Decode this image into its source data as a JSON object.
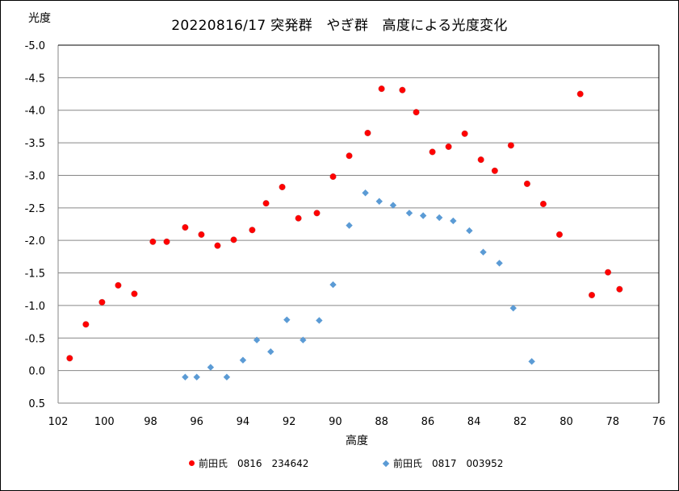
{
  "chart_data": {
    "type": "scatter",
    "title": "20220816/17 突発群　やぎ群　高度による光度変化",
    "xlabel": "高度",
    "ylabel": "光度",
    "xlim": [
      102,
      76
    ],
    "ylim": [
      0.5,
      -5.0
    ],
    "x_reversed": true,
    "y_reversed": true,
    "x_ticks": [
      "102",
      "100",
      "98",
      "96",
      "94",
      "92",
      "90",
      "88",
      "86",
      "84",
      "82",
      "80",
      "78",
      "76"
    ],
    "y_ticks": [
      "-5.0",
      "-4.5",
      "-4.0",
      "-3.5",
      "-3.0",
      "-2.5",
      "-2.0",
      "-1.5",
      "-1.0",
      "-0.5",
      "0.0",
      "0.5"
    ],
    "grid": true,
    "legend_position": "bottom",
    "series": [
      {
        "name": "前田氏　0816　234642",
        "marker": "circle",
        "color": "#ff0000",
        "points": [
          [
            101.5,
            -0.19
          ],
          [
            100.8,
            -0.71
          ],
          [
            100.1,
            -1.05
          ],
          [
            99.4,
            -1.31
          ],
          [
            98.7,
            -1.18
          ],
          [
            97.9,
            -1.98
          ],
          [
            97.3,
            -1.98
          ],
          [
            96.5,
            -2.2
          ],
          [
            95.8,
            -2.09
          ],
          [
            95.1,
            -1.92
          ],
          [
            94.4,
            -2.01
          ],
          [
            93.6,
            -2.16
          ],
          [
            93.0,
            -2.57
          ],
          [
            92.3,
            -2.82
          ],
          [
            91.6,
            -2.34
          ],
          [
            90.8,
            -2.42
          ],
          [
            90.1,
            -2.98
          ],
          [
            89.4,
            -3.3
          ],
          [
            88.6,
            -3.65
          ],
          [
            88.0,
            -4.33
          ],
          [
            87.1,
            -4.31
          ],
          [
            86.5,
            -3.97
          ],
          [
            85.8,
            -3.36
          ],
          [
            85.1,
            -3.44
          ],
          [
            84.4,
            -3.64
          ],
          [
            83.7,
            -3.24
          ],
          [
            83.1,
            -3.07
          ],
          [
            82.4,
            -3.46
          ],
          [
            81.7,
            -2.87
          ],
          [
            81.0,
            -2.56
          ],
          [
            80.3,
            -2.09
          ],
          [
            79.4,
            -4.25
          ],
          [
            78.9,
            -1.16
          ],
          [
            78.2,
            -1.51
          ],
          [
            77.7,
            -1.25
          ]
        ]
      },
      {
        "name": "前田氏　0817　003952",
        "marker": "diamond",
        "color": "#5b9bd5",
        "points": [
          [
            96.5,
            0.1
          ],
          [
            96.0,
            0.1
          ],
          [
            95.4,
            -0.05
          ],
          [
            94.7,
            0.1
          ],
          [
            94.0,
            -0.16
          ],
          [
            93.4,
            -0.47
          ],
          [
            92.8,
            -0.29
          ],
          [
            92.1,
            -0.78
          ],
          [
            91.4,
            -0.47
          ],
          [
            90.7,
            -0.77
          ],
          [
            90.1,
            -1.32
          ],
          [
            89.4,
            -2.23
          ],
          [
            88.7,
            -2.73
          ],
          [
            88.1,
            -2.6
          ],
          [
            87.5,
            -2.54
          ],
          [
            86.8,
            -2.42
          ],
          [
            86.2,
            -2.38
          ],
          [
            85.5,
            -2.35
          ],
          [
            84.9,
            -2.3
          ],
          [
            84.2,
            -2.15
          ],
          [
            83.6,
            -1.82
          ],
          [
            82.9,
            -1.65
          ],
          [
            82.3,
            -0.96
          ],
          [
            81.5,
            -0.14
          ]
        ]
      }
    ]
  }
}
